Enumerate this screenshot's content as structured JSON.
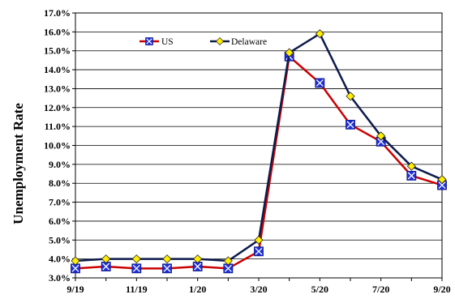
{
  "chart_data": {
    "type": "line",
    "title": "",
    "xlabel": "",
    "ylabel": "Unemployment Rate",
    "ylim": [
      3.0,
      17.0
    ],
    "y_ticks": [
      "3.0%",
      "4.0%",
      "5.0%",
      "6.0%",
      "7.0%",
      "8.0%",
      "9.0%",
      "10.0%",
      "11.0%",
      "12.0%",
      "13.0%",
      "14.0%",
      "15.0%",
      "16.0%",
      "17.0%"
    ],
    "categories": [
      "9/19",
      "10/19",
      "11/19",
      "12/19",
      "1/20",
      "2/20",
      "3/20",
      "4/20",
      "5/20",
      "6/20",
      "7/20",
      "8/20",
      "9/20"
    ],
    "x_tick_labels": [
      "9/19",
      "11/19",
      "1/20",
      "3/20",
      "5/20",
      "7/20",
      "9/20"
    ],
    "grid": true,
    "legend_placement": "top-center",
    "series": [
      {
        "name": "US",
        "color": "#cc0000",
        "marker": "blue-square-x",
        "marker_color": "#1f2fd6",
        "values": [
          3.5,
          3.6,
          3.5,
          3.5,
          3.6,
          3.5,
          4.4,
          14.7,
          13.3,
          11.1,
          10.2,
          8.4,
          7.9
        ]
      },
      {
        "name": "Delaware",
        "color": "#0d1b4d",
        "marker": "yellow-diamond",
        "marker_color": "#ffee00",
        "values": [
          3.9,
          4.0,
          4.0,
          4.0,
          4.0,
          3.9,
          5.0,
          14.9,
          15.9,
          12.6,
          10.5,
          8.9,
          8.2
        ]
      }
    ]
  }
}
